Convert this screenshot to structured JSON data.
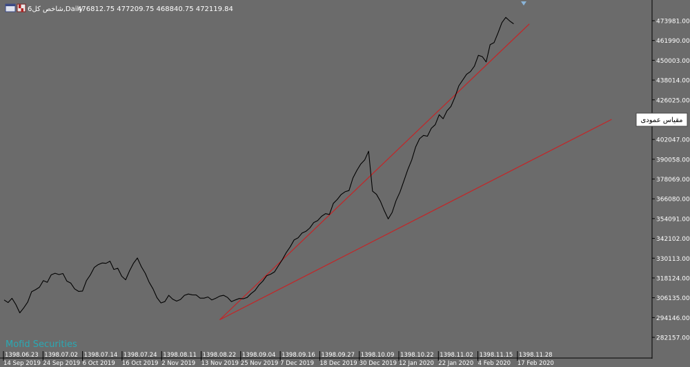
{
  "header": {
    "title": "شاخص کل6,Daily",
    "ohlc": "476812.75 477209.75 468840.75 472119.84"
  },
  "watermark": "Mofid Securities",
  "tooltip": "مقیاس عمودی",
  "colors": {
    "background": "#6b6b6b",
    "line": "#000000",
    "trendline": "#c0282a",
    "axis_text": "#ffffff",
    "watermark": "#2aa9b4"
  },
  "chart_data": {
    "type": "line",
    "y_ticks": [
      "473981.00",
      "461990.00",
      "450003.00",
      "438014.00",
      "426025.00",
      "402047.00",
      "390058.00",
      "378069.00",
      "366080.00",
      "354091.00",
      "342102.00",
      "330113.00",
      "318124.00",
      "306135.00",
      "294146.00",
      "282157.00"
    ],
    "x_ticks_persian": [
      "1398.06.23",
      "1398.07.02",
      "1398.07.14",
      "1398.07.24",
      "1398.08.11",
      "1398.08.22",
      "1398.09.04",
      "1398.09.16",
      "1398.09.27",
      "1398.10.09",
      "1398.10.22",
      "1398.11.02",
      "1398.11.15",
      "1398.11.28"
    ],
    "x_ticks_gregorian": [
      "14 Sep 2019",
      "24 Sep 2019",
      "6 Oct 2019",
      "16 Oct 2019",
      "2 Nov 2019",
      "13 Nov 2019",
      "25 Nov 2019",
      "7 Dec 2019",
      "18 Dec 2019",
      "30 Dec 2019",
      "12 Jan 2020",
      "22 Jan 2020",
      "4 Feb 2020",
      "17 Feb 2020"
    ],
    "y_range": [
      280000,
      480000
    ],
    "series": [
      {
        "values": [
          304800,
          303200,
          305800,
          302000,
          297000,
          300000,
          303500,
          309800,
          311000,
          312500,
          316500,
          315500,
          320000,
          321000,
          320200,
          320800,
          316200,
          315000,
          311500,
          310000,
          310200,
          316500,
          320000,
          324500,
          326200,
          327200,
          327000,
          328300,
          323300,
          324000,
          319200,
          317000,
          322500,
          327000,
          330200,
          325000,
          321000,
          315500,
          311500,
          306200,
          303000,
          303800,
          307600,
          305300,
          304100,
          305100,
          307600,
          308400,
          307900,
          307800,
          305900,
          305900,
          306600,
          304800,
          305800,
          307100,
          307600,
          306300,
          303800,
          304800,
          305700,
          305500,
          306300,
          308600,
          310500,
          313800,
          316200,
          319500,
          320400,
          321800,
          325600,
          329300,
          333600,
          337000,
          341200,
          342400,
          345300,
          346400,
          348400,
          351700,
          352900,
          355500,
          357100,
          356600,
          363300,
          365700,
          368700,
          370400,
          371100,
          378700,
          383300,
          387200,
          389700,
          394900,
          370700,
          368800,
          364600,
          358900,
          353900,
          357800,
          365000,
          370200,
          377000,
          383800,
          389600,
          397500,
          402500,
          404500,
          404000,
          408800,
          411000,
          417000,
          414600,
          419400,
          422000,
          427500,
          434500,
          438000,
          441500,
          443200,
          446500,
          453000,
          452200,
          449000,
          459500,
          460700,
          466500,
          472800,
          476000,
          473800,
          472100
        ]
      }
    ],
    "trendlines": [
      {
        "from": {
          "x_index": 55,
          "y": 292800
        },
        "to": {
          "x_index": 134,
          "y": 472000
        }
      },
      {
        "from": {
          "x_index": 55,
          "y": 292800
        },
        "to": {
          "x_index": 155,
          "y": 414200
        }
      }
    ]
  }
}
